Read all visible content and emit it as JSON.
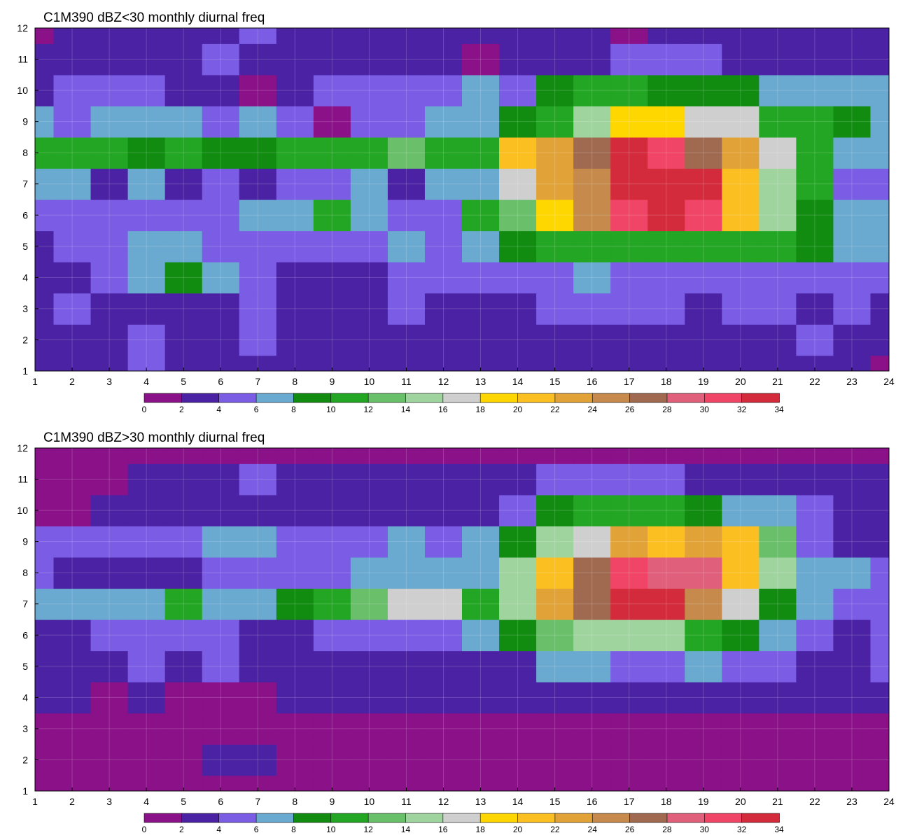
{
  "chart_data": [
    {
      "type": "heatmap",
      "title": "C1M390 dBZ<30 monthly diurnal freq",
      "xlabel": "",
      "ylabel": "",
      "xlim": [
        1,
        24
      ],
      "ylim": [
        1,
        12
      ],
      "x_ticks": [
        1,
        2,
        3,
        4,
        5,
        6,
        7,
        8,
        9,
        10,
        11,
        12,
        13,
        14,
        15,
        16,
        17,
        18,
        19,
        20,
        21,
        22,
        23,
        24
      ],
      "y_ticks": [
        1,
        2,
        3,
        4,
        5,
        6,
        7,
        8,
        9,
        10,
        11,
        12
      ],
      "grid": true,
      "colorbar": {
        "levels": [
          0,
          2,
          4,
          6,
          8,
          10,
          12,
          14,
          16,
          18,
          20,
          22,
          24,
          26,
          28,
          30,
          32,
          34
        ],
        "colors": [
          "#8b1188",
          "#4b22a3",
          "#7b5ce5",
          "#6aa9d0",
          "#118c11",
          "#23a623",
          "#6abf6a",
          "#9fd49f",
          "#cfcfcf",
          "#ffd700",
          "#fbbf22",
          "#e1a338",
          "#c58a4c",
          "#a06a50",
          "#e0607b",
          "#f04566",
          "#d42b3c"
        ]
      },
      "contour_labels": [
        "2",
        "4",
        "6",
        "8",
        "10",
        "12",
        "14",
        "16",
        "18",
        "20",
        "22",
        "24",
        "26",
        "28",
        "30"
      ],
      "z": [
        [
          3,
          3.5,
          3.8,
          4,
          3,
          3.2,
          3.6,
          3.4,
          3.2,
          2.6,
          3.2,
          3,
          3.4,
          3.5,
          3.2,
          2.4,
          2.8,
          3,
          2.4,
          3,
          3.6,
          3.4,
          3.2,
          1.8
        ],
        [
          3.6,
          3.2,
          3.8,
          4.4,
          3.6,
          3.8,
          4,
          3.8,
          3.6,
          3.6,
          3.8,
          2.2,
          3.6,
          2.4,
          2.4,
          3,
          3.8,
          2.2,
          2,
          3.8,
          3.4,
          4,
          3.4,
          2.6
        ],
        [
          3.8,
          4,
          3.2,
          3.6,
          3.6,
          3.6,
          4,
          3.4,
          3.2,
          3.6,
          4,
          3.8,
          3.2,
          3.4,
          4.2,
          4.8,
          5,
          4.4,
          3.6,
          4,
          4.6,
          3.4,
          4.4,
          3.6
        ],
        [
          3.8,
          3.6,
          4,
          7.2,
          9.2,
          7,
          5,
          3.8,
          3.4,
          2.6,
          4,
          4.4,
          4.6,
          4,
          5.4,
          6,
          5.6,
          4.8,
          4.8,
          5.4,
          5.6,
          5.2,
          4.6,
          5
        ],
        [
          3.2,
          5.4,
          4.8,
          7.2,
          6.8,
          5,
          5.2,
          5.8,
          5.4,
          4.8,
          6,
          5.2,
          6.2,
          8.4,
          10.6,
          11.2,
          11.4,
          11.2,
          11,
          11.4,
          10.6,
          8.2,
          6.2,
          6
        ],
        [
          5.2,
          5.6,
          5,
          5.6,
          4,
          5.6,
          6.2,
          6.4,
          10.2,
          6.6,
          5.8,
          4.2,
          10,
          13.6,
          19.4,
          24.4,
          31.6,
          32,
          30.6,
          21.4,
          15.4,
          9,
          6.2,
          6.8
        ],
        [
          6.4,
          6.6,
          3,
          6,
          3.6,
          4.6,
          3.8,
          4.4,
          5.8,
          6.4,
          2.8,
          6.6,
          7.4,
          17,
          22.2,
          25.6,
          33,
          32.6,
          34,
          20.4,
          15.4,
          11.4,
          4.6,
          5.8
        ],
        [
          11.4,
          10.4,
          11,
          9.2,
          11,
          9.4,
          9.8,
          10.6,
          10.4,
          10.2,
          13.4,
          10.8,
          11.6,
          21.2,
          23.6,
          26.2,
          33,
          30.4,
          27.4,
          22,
          16.6,
          11,
          7.4,
          6
        ],
        [
          6.8,
          4.2,
          6.2,
          6.6,
          6.4,
          5.2,
          6,
          5.6,
          1.8,
          4.4,
          4.4,
          6,
          6.8,
          9,
          11,
          14,
          19.6,
          19.6,
          17,
          16.2,
          10.4,
          10,
          9.2,
          7.2
        ],
        [
          3.6,
          4.6,
          5.6,
          4.2,
          3.4,
          3.6,
          1.4,
          3.8,
          4.4,
          4.2,
          4.4,
          4.2,
          6.4,
          4.4,
          8.4,
          10.2,
          10.6,
          9.4,
          9,
          8.4,
          7.4,
          7.2,
          6,
          6.6
        ],
        [
          3,
          3.6,
          2.6,
          3.6,
          3.4,
          5.4,
          2,
          2.8,
          3.6,
          3.6,
          3.2,
          3.6,
          1.8,
          3.2,
          3.8,
          3.8,
          4.8,
          4.6,
          4,
          3.8,
          2.6,
          2.2,
          2,
          3
        ],
        [
          1.8,
          2.4,
          3.2,
          2.4,
          3.6,
          3.4,
          4,
          3.6,
          3.2,
          2.8,
          3.4,
          2.6,
          3.2,
          3.6,
          2.4,
          3.2,
          1.4,
          2.4,
          2.6,
          2.8,
          2.2,
          2.8,
          2.4,
          2.6
        ]
      ]
    },
    {
      "type": "heatmap",
      "title": "C1M390 dBZ>30 monthly diurnal freq",
      "xlabel": "",
      "ylabel": "",
      "xlim": [
        1,
        24
      ],
      "ylim": [
        1,
        12
      ],
      "x_ticks": [
        1,
        2,
        3,
        4,
        5,
        6,
        7,
        8,
        9,
        10,
        11,
        12,
        13,
        14,
        15,
        16,
        17,
        18,
        19,
        20,
        21,
        22,
        23,
        24
      ],
      "y_ticks": [
        1,
        2,
        3,
        4,
        5,
        6,
        7,
        8,
        9,
        10,
        11,
        12
      ],
      "grid": true,
      "colorbar": {
        "levels": [
          0,
          2,
          4,
          6,
          8,
          10,
          12,
          14,
          16,
          18,
          20,
          22,
          24,
          26,
          28,
          30,
          32,
          34
        ],
        "colors": [
          "#8b1188",
          "#4b22a3",
          "#7b5ce5",
          "#6aa9d0",
          "#118c11",
          "#23a623",
          "#6abf6a",
          "#9fd49f",
          "#cfcfcf",
          "#ffd700",
          "#fbbf22",
          "#e1a338",
          "#c58a4c",
          "#a06a50",
          "#e0607b",
          "#f04566",
          "#d42b3c"
        ]
      },
      "contour_labels": [
        "2",
        "4",
        "6",
        "8",
        "10",
        "12",
        "14",
        "16",
        "18",
        "20",
        "22",
        "24",
        "26",
        "28",
        "30"
      ],
      "z": [
        [
          0.6,
          0.6,
          0.6,
          0.8,
          0.6,
          0.6,
          0.8,
          0.6,
          0.6,
          1.4,
          0.8,
          0.6,
          0.6,
          0.6,
          0.6,
          0.6,
          0.6,
          0.6,
          0.6,
          0.6,
          0.6,
          0.6,
          0.6,
          0.6
        ],
        [
          1,
          1,
          1,
          1,
          1,
          3.2,
          3,
          1.2,
          0.8,
          0.8,
          0.8,
          1,
          0.8,
          0.8,
          0.8,
          0.8,
          0.8,
          0.8,
          0.8,
          0.8,
          0.8,
          0.8,
          0.8,
          0.8
        ],
        [
          1.2,
          1.4,
          1.4,
          1.6,
          1.6,
          1.6,
          1.6,
          1.6,
          1.6,
          1.6,
          1.6,
          1.6,
          1.6,
          1.6,
          1.8,
          1.6,
          1.6,
          1.6,
          1.6,
          1.4,
          1.4,
          1.4,
          1.2,
          1.2
        ],
        [
          2.4,
          2,
          1.8,
          2,
          1.4,
          1.4,
          1.8,
          2,
          2,
          2,
          2,
          2.2,
          2,
          2.6,
          2.8,
          2.6,
          2.2,
          2.6,
          2.4,
          2.2,
          2.4,
          2.6,
          3.2,
          3
        ],
        [
          3.2,
          2.6,
          2.8,
          5.4,
          2.8,
          5.2,
          2.8,
          2.8,
          2.2,
          2.4,
          2.2,
          2.4,
          2.4,
          3.8,
          6,
          6,
          4.6,
          5,
          6.2,
          5.4,
          5.6,
          3,
          3.8,
          4.6
        ],
        [
          3.6,
          3.8,
          4.2,
          4.6,
          4.8,
          4.4,
          3.4,
          3.6,
          5.2,
          4.2,
          4.2,
          4.8,
          6.8,
          8.8,
          12,
          14.4,
          15.4,
          14.2,
          11.6,
          9.6,
          7.6,
          5,
          3.6,
          4.8
        ],
        [
          6,
          6.4,
          7,
          6.2,
          10.6,
          6.6,
          6.2,
          8.6,
          10.4,
          13.2,
          17.4,
          16.2,
          11.6,
          15.6,
          22.6,
          26,
          33,
          32.4,
          25.8,
          16.8,
          9.8,
          6.6,
          5.2,
          5.8
        ],
        [
          4,
          2.6,
          2.8,
          3.8,
          3.8,
          4.8,
          4,
          4.2,
          4.4,
          6.8,
          6.4,
          6.2,
          7.6,
          14.4,
          21.8,
          26,
          31.6,
          28.6,
          28.4,
          21.6,
          14,
          6.8,
          6.2,
          5.6
        ],
        [
          4.2,
          4.2,
          5.4,
          4.8,
          5.2,
          6,
          6.2,
          4.4,
          4.2,
          4.2,
          6.2,
          4.2,
          6.8,
          8.8,
          14.2,
          17.6,
          23.8,
          21.2,
          23.6,
          20.8,
          12.4,
          5.8,
          3.2,
          3.6
        ],
        [
          1.8,
          1.8,
          2.2,
          2.6,
          2.4,
          2.6,
          2.2,
          2.6,
          2.4,
          2.6,
          2,
          2.8,
          3.6,
          5.2,
          8.2,
          10.8,
          10.4,
          10.2,
          8.2,
          7.4,
          6.4,
          5,
          3.4,
          2.2
        ],
        [
          1.2,
          1.8,
          1.8,
          2.2,
          3.8,
          3.2,
          4.4,
          2.4,
          2,
          2.2,
          3.2,
          2.6,
          2.8,
          3.2,
          4.2,
          4.6,
          4.2,
          4.6,
          3.8,
          3.2,
          3.4,
          3.2,
          2,
          2.6
        ],
        [
          1.2,
          1.2,
          1.2,
          1.2,
          1.2,
          1.2,
          1.2,
          1,
          1,
          1,
          1,
          1,
          1,
          1.6,
          1.4,
          1.4,
          1.6,
          1.4,
          1.2,
          1,
          1,
          1,
          1,
          1
        ]
      ]
    }
  ]
}
